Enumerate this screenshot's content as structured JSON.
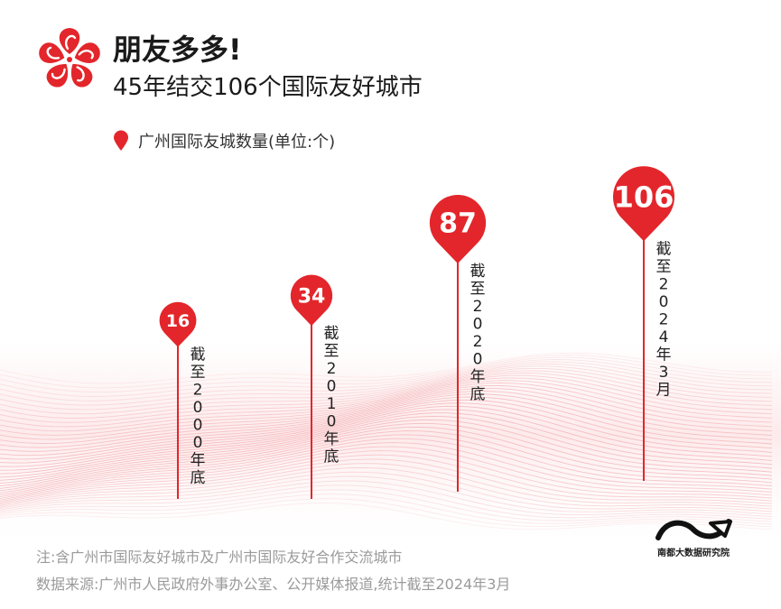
{
  "header": {
    "title": "朋友多多!",
    "subtitle": "45年结交106个国际友好城市"
  },
  "legend": {
    "label": "广州国际友城数量(单位:个)"
  },
  "footer": {
    "note": "注:含广州市国际友好城市及广州市国际友好合作交流城市",
    "source": "数据来源:广州市人民政府外事办公室、公开媒体报道,统计截至2024年3月"
  },
  "brand": {
    "name": "南都大数据研究院"
  },
  "colors": {
    "accent": "#e3262b",
    "pin_text": "#ffffff",
    "wave": "#f2a7ab"
  },
  "icons": {
    "logo": "kapok-flower-icon",
    "legend_marker": "map-pin-icon",
    "brand_logo": "wave-logo-icon"
  },
  "chart_data": {
    "type": "bar",
    "categories": [
      "截至2000年底",
      "截至2010年底",
      "截至2020年底",
      "截至2024年3月"
    ],
    "values": [
      16,
      34,
      87,
      106
    ],
    "value_labels": [
      "16",
      "34",
      "87",
      "106"
    ],
    "title": "",
    "xlabel": "",
    "ylabel": "",
    "ylim": [
      0,
      106
    ]
  }
}
